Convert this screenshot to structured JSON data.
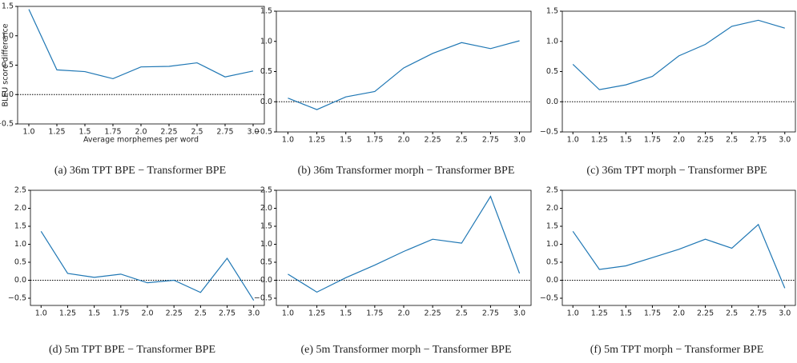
{
  "chart_data": [
    {
      "type": "line",
      "title": "(a) 36m TPT BPE − Transformer BPE",
      "y_label": "BLEU score difference",
      "x_label": "Average morphemes per word",
      "x": [
        1.0,
        1.25,
        1.5,
        1.75,
        2.0,
        2.25,
        2.5,
        2.75,
        3.0
      ],
      "color": "#1f77b4",
      "hline": 0,
      "values": [
        1.45,
        0.42,
        0.39,
        0.27,
        0.47,
        0.48,
        0.54,
        0.3,
        0.4
      ],
      "xlim": [
        0.9,
        3.1
      ],
      "xticks": [
        {
          "value": 1,
          "label": "1.0"
        },
        1.25,
        1.5,
        1.75,
        {
          "value": 2,
          "label": "2.0"
        },
        2.25,
        2.5,
        2.75,
        {
          "value": 3,
          "label": "3.0"
        }
      ],
      "ylim": [
        -0.5,
        1.5
      ],
      "yticks": [
        {
          "value": -0.5,
          "label": "−0.5"
        },
        {
          "value": 0,
          "label": "0.0"
        },
        0.5,
        {
          "value": 1,
          "label": "1.0"
        },
        1.5
      ]
    },
    {
      "type": "line",
      "title": "(b) 36m Transformer morph − Transformer BPE",
      "x": [
        1.0,
        1.25,
        1.5,
        1.75,
        2.0,
        2.25,
        2.5,
        2.75,
        3.0
      ],
      "color": "#1f77b4",
      "hline": 0,
      "values": [
        0.06,
        -0.13,
        0.08,
        0.17,
        0.56,
        0.8,
        0.98,
        0.88,
        1.01
      ],
      "xlim": [
        0.9,
        3.1
      ],
      "xticks": [
        {
          "value": 1,
          "label": "1.0"
        },
        1.25,
        1.5,
        1.75,
        {
          "value": 2,
          "label": "2.0"
        },
        2.25,
        2.5,
        2.75,
        {
          "value": 3,
          "label": "3.0"
        }
      ],
      "ylim": [
        -0.5,
        1.5
      ],
      "yticks": [
        {
          "value": -0.5,
          "label": "−0.5"
        },
        {
          "value": 0,
          "label": "0.0"
        },
        0.5,
        {
          "value": 1,
          "label": "1.0"
        },
        1.5
      ]
    },
    {
      "type": "line",
      "title": "(c) 36m TPT morph − Transformer BPE",
      "x": [
        1.0,
        1.25,
        1.5,
        1.75,
        2.0,
        2.25,
        2.5,
        2.75,
        3.0
      ],
      "color": "#1f77b4",
      "hline": 0,
      "values": [
        0.62,
        0.2,
        0.28,
        0.42,
        0.76,
        0.95,
        1.25,
        1.35,
        1.22
      ],
      "xlim": [
        0.9,
        3.1
      ],
      "xticks": [
        {
          "value": 1,
          "label": "1.0"
        },
        1.25,
        1.5,
        1.75,
        {
          "value": 2,
          "label": "2.0"
        },
        2.25,
        2.5,
        2.75,
        {
          "value": 3,
          "label": "3.0"
        }
      ],
      "ylim": [
        -0.5,
        1.5
      ],
      "yticks": [
        {
          "value": -0.5,
          "label": "−0.5"
        },
        {
          "value": 0,
          "label": "0.0"
        },
        0.5,
        {
          "value": 1,
          "label": "1.0"
        },
        1.5
      ]
    },
    {
      "type": "line",
      "title": "(d) 5m TPT BPE − Transformer BPE",
      "x": [
        1.0,
        1.25,
        1.5,
        1.75,
        2.0,
        2.25,
        2.5,
        2.75,
        3.0
      ],
      "color": "#1f77b4",
      "hline": 0,
      "values": [
        1.36,
        0.19,
        0.08,
        0.17,
        -0.07,
        0.0,
        -0.34,
        0.61,
        -0.56
      ],
      "xlim": [
        0.9,
        3.1
      ],
      "xticks": [
        {
          "value": 1,
          "label": "1.0"
        },
        1.25,
        1.5,
        1.75,
        {
          "value": 2,
          "label": "2.0"
        },
        2.25,
        2.5,
        2.75,
        {
          "value": 3,
          "label": "3.0"
        }
      ],
      "ylim": [
        -0.7,
        2.5
      ],
      "yticks": [
        {
          "value": -0.5,
          "label": "−0.5"
        },
        {
          "value": 0,
          "label": "0.0"
        },
        0.5,
        {
          "value": 1,
          "label": "1.0"
        },
        1.5,
        {
          "value": 2,
          "label": "2.0"
        },
        2.5
      ]
    },
    {
      "type": "line",
      "title": "(e) 5m Transformer morph − Transformer BPE",
      "x": [
        1.0,
        1.25,
        1.5,
        1.75,
        2.0,
        2.25,
        2.5,
        2.75,
        3.0
      ],
      "color": "#1f77b4",
      "hline": 0,
      "values": [
        0.17,
        -0.33,
        0.07,
        0.42,
        0.8,
        1.14,
        1.03,
        2.33,
        0.19
      ],
      "xlim": [
        0.9,
        3.1
      ],
      "xticks": [
        {
          "value": 1,
          "label": "1.0"
        },
        1.25,
        1.5,
        1.75,
        {
          "value": 2,
          "label": "2.0"
        },
        2.25,
        2.5,
        2.75,
        {
          "value": 3,
          "label": "3.0"
        }
      ],
      "ylim": [
        -0.7,
        2.5
      ],
      "yticks": [
        {
          "value": -0.5,
          "label": "−0.5"
        },
        {
          "value": 0,
          "label": "0.0"
        },
        0.5,
        {
          "value": 1,
          "label": "1.0"
        },
        1.5,
        {
          "value": 2,
          "label": "2.0"
        },
        2.5
      ]
    },
    {
      "type": "line",
      "title": "(f) 5m TPT morph − Transformer BPE",
      "x": [
        1.0,
        1.25,
        1.5,
        1.75,
        2.0,
        2.25,
        2.5,
        2.75,
        3.0
      ],
      "color": "#1f77b4",
      "hline": 0,
      "values": [
        1.36,
        0.3,
        0.4,
        0.63,
        0.86,
        1.14,
        0.89,
        1.55,
        -0.22
      ],
      "xlim": [
        0.9,
        3.1
      ],
      "xticks": [
        {
          "value": 1,
          "label": "1.0"
        },
        1.25,
        1.5,
        1.75,
        {
          "value": 2,
          "label": "2.0"
        },
        2.25,
        2.5,
        2.75,
        {
          "value": 3,
          "label": "3.0"
        }
      ],
      "ylim": [
        -0.7,
        2.5
      ],
      "yticks": [
        {
          "value": -0.5,
          "label": "−0.5"
        },
        {
          "value": 0,
          "label": "0.0"
        },
        0.5,
        {
          "value": 1,
          "label": "1.0"
        },
        1.5,
        {
          "value": 2,
          "label": "2.0"
        },
        2.5
      ]
    }
  ]
}
